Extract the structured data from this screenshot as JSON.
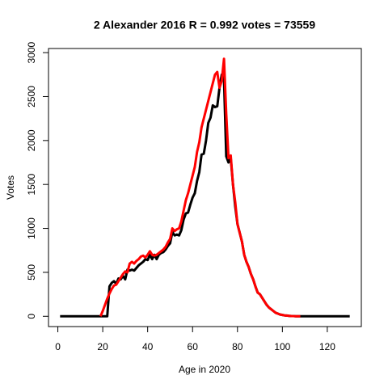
{
  "chart_data": {
    "type": "line",
    "title": "2 Alexander 2016 R = 0.992 votes = 73559",
    "xlabel": "Age in 2020",
    "ylabel": "Votes",
    "x": [
      1,
      2,
      3,
      4,
      5,
      6,
      7,
      8,
      9,
      10,
      11,
      12,
      13,
      14,
      15,
      16,
      17,
      18,
      19,
      20,
      21,
      22,
      23,
      24,
      25,
      26,
      27,
      28,
      29,
      30,
      31,
      32,
      33,
      34,
      35,
      36,
      37,
      38,
      39,
      40,
      41,
      42,
      43,
      44,
      45,
      46,
      47,
      48,
      49,
      50,
      51,
      52,
      53,
      54,
      55,
      56,
      57,
      58,
      59,
      60,
      61,
      62,
      63,
      64,
      65,
      66,
      67,
      68,
      69,
      70,
      71,
      72,
      73,
      74,
      75,
      76,
      77,
      78,
      79,
      80,
      81,
      82,
      83,
      84,
      85,
      86,
      87,
      88,
      89,
      90,
      91,
      92,
      93,
      94,
      95,
      96,
      97,
      98,
      99,
      100,
      101,
      102,
      103,
      104,
      105,
      106,
      107,
      108,
      109,
      110,
      111,
      112,
      113,
      114,
      115,
      116,
      117,
      118,
      119,
      120,
      121,
      122,
      123,
      124,
      125,
      126,
      127,
      128,
      129,
      130
    ],
    "series": [
      {
        "color": "#000000",
        "values": [
          0,
          0,
          0,
          0,
          0,
          0,
          0,
          0,
          0,
          0,
          0,
          0,
          0,
          0,
          0,
          0,
          0,
          0,
          0,
          0,
          0,
          0,
          340,
          380,
          400,
          370,
          430,
          420,
          460,
          420,
          530,
          520,
          530,
          520,
          550,
          580,
          600,
          620,
          650,
          640,
          700,
          650,
          700,
          650,
          700,
          720,
          730,
          760,
          800,
          830,
          960,
          920,
          930,
          920,
          980,
          1100,
          1170,
          1180,
          1270,
          1350,
          1400,
          1540,
          1640,
          1840,
          1850,
          2000,
          2200,
          2260,
          2400,
          2380,
          2390,
          2600,
          2750,
          2700,
          1820,
          1750,
          1800,
          1500,
          1250,
          1050,
          950,
          850,
          700,
          620,
          560,
          480,
          420,
          340,
          270,
          250,
          210,
          170,
          130,
          100,
          80,
          60,
          40,
          30,
          20,
          15,
          10,
          8,
          5,
          3,
          2,
          0,
          0,
          0,
          0,
          0,
          0,
          0,
          0,
          0,
          0,
          0,
          0,
          0,
          0,
          0,
          0,
          0,
          0,
          0,
          0,
          0,
          0,
          0,
          0,
          0
        ]
      },
      {
        "color": "#ff0000",
        "values": [
          null,
          null,
          null,
          null,
          null,
          null,
          null,
          null,
          null,
          null,
          null,
          null,
          null,
          null,
          null,
          null,
          null,
          null,
          0,
          60,
          130,
          200,
          260,
          310,
          350,
          360,
          400,
          440,
          480,
          510,
          500,
          600,
          620,
          600,
          630,
          650,
          680,
          690,
          670,
          700,
          740,
          700,
          690,
          700,
          720,
          740,
          760,
          790,
          840,
          880,
          1000,
          970,
          990,
          1000,
          1080,
          1200,
          1320,
          1400,
          1500,
          1600,
          1700,
          1870,
          1980,
          2150,
          2250,
          2350,
          2450,
          2550,
          2650,
          2750,
          2780,
          2600,
          2680,
          2930,
          2300,
          1800,
          1830,
          1500,
          1300,
          1050,
          950,
          850,
          700,
          620,
          560,
          480,
          420,
          340,
          270,
          250,
          210,
          170,
          130,
          100,
          80,
          60,
          40,
          30,
          20,
          15,
          10,
          8,
          5,
          3,
          2,
          0,
          0,
          0,
          null,
          null,
          null,
          null,
          null,
          null,
          null,
          null,
          null,
          null,
          null,
          null,
          null,
          null,
          null,
          null,
          null,
          null,
          null,
          null,
          null,
          null
        ]
      }
    ],
    "xlim": [
      -4.16,
      135.16
    ],
    "ylim": [
      -117,
      3047
    ],
    "xticks": [
      0,
      20,
      40,
      60,
      80,
      100,
      120
    ],
    "yticks": [
      0,
      500,
      1000,
      1500,
      2000,
      2500,
      3000
    ]
  }
}
